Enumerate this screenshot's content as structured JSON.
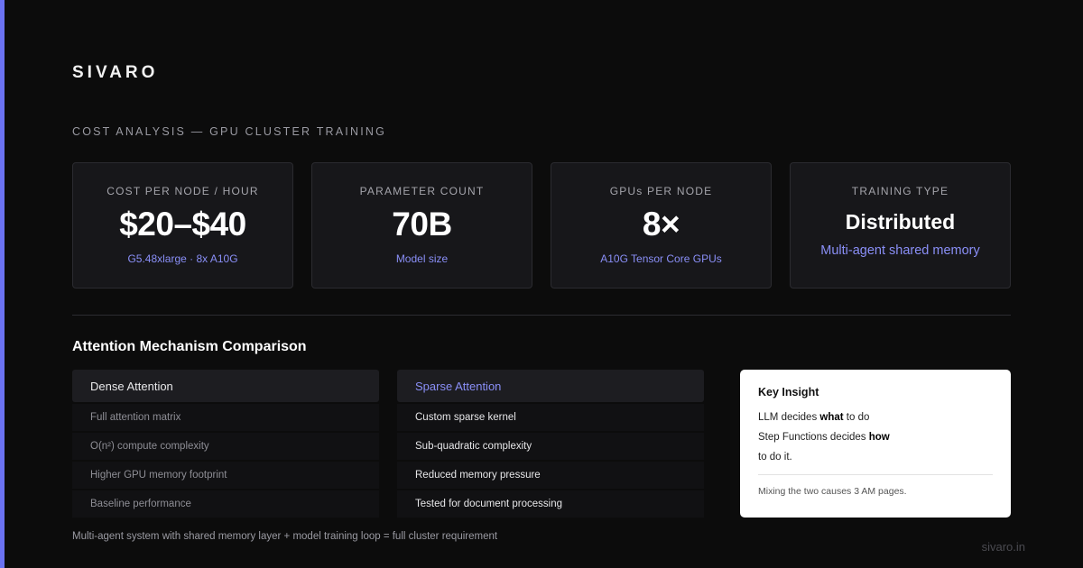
{
  "brand": "SIVARO",
  "section_label": "COST ANALYSIS — GPU CLUSTER TRAINING",
  "stats": [
    {
      "label": "COST PER NODE / HOUR",
      "value": "$20–$40",
      "sub": "G5.48xlarge · 8x A10G"
    },
    {
      "label": "PARAMETER COUNT",
      "value": "70B",
      "sub": "Model size"
    },
    {
      "label": "GPUs PER NODE",
      "value": "8×",
      "sub": "A10G Tensor Core GPUs"
    },
    {
      "label": "TRAINING TYPE",
      "value": "Distributed",
      "sub": "Multi-agent shared memory"
    }
  ],
  "comparison": {
    "title": "Attention Mechanism Comparison",
    "dense": {
      "header": "Dense Attention",
      "rows": [
        "Full attention matrix",
        "O(n²) compute complexity",
        "Higher GPU memory footprint",
        "Baseline performance"
      ]
    },
    "sparse": {
      "header": "Sparse Attention",
      "rows": [
        "Custom sparse kernel",
        "Sub-quadratic complexity",
        "Reduced memory pressure",
        "Tested for document processing"
      ]
    }
  },
  "insight": {
    "title": "Key Insight",
    "line1_a": "LLM decides ",
    "line1_b": "what",
    "line1_c": " to do",
    "line2_a": "Step Functions decides ",
    "line2_b": "how",
    "line3": "to do it.",
    "note": "Mixing the two causes 3 AM pages."
  },
  "footnote": "Multi-agent system with shared memory layer + model training loop = full cluster requirement",
  "domain": "sivaro.in",
  "colors": {
    "accent": "#6b72f2",
    "link": "#8a8ff7",
    "background": "#0c0c0c"
  }
}
